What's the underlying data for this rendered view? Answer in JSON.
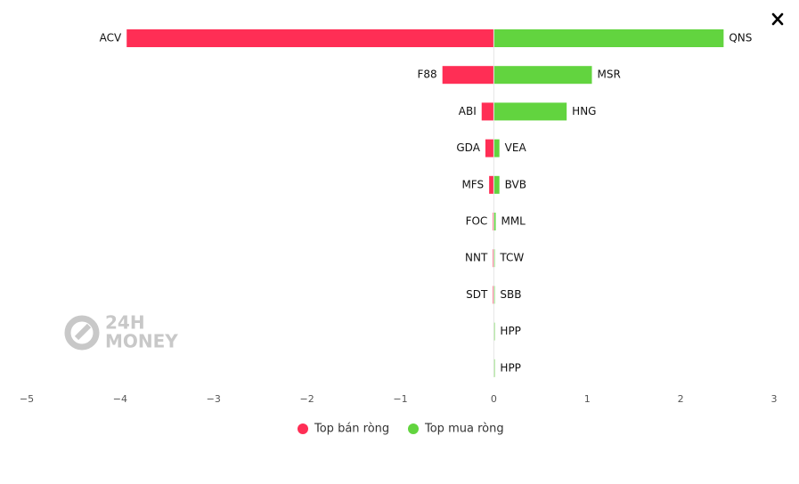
{
  "chart_data": {
    "type": "diverging-bar",
    "series": [
      {
        "name": "Top bán ròng",
        "color": "#ff2e55",
        "labels": [
          "ACV",
          "F88",
          "ABI",
          "GDA",
          "MFS",
          "FOC",
          "NNT",
          "SDT",
          null,
          null
        ],
        "values": [
          -3.93,
          -0.55,
          -0.13,
          -0.09,
          -0.05,
          -0.01,
          -0.01,
          -0.01,
          0,
          0
        ]
      },
      {
        "name": "Top mua ròng",
        "color": "#62d43f",
        "labels": [
          "QNS",
          "MSR",
          "HNG",
          "VEA",
          "BVB",
          "MML",
          "TCW",
          "SBB",
          "HPP",
          "HPP"
        ],
        "values": [
          2.46,
          1.05,
          0.78,
          0.06,
          0.06,
          0.02,
          0.01,
          0.01,
          0.01,
          0.01
        ]
      }
    ],
    "xlim": [
      -5,
      3
    ],
    "xticks": [
      {
        "value": -5,
        "label": "−5"
      },
      {
        "value": -4,
        "label": "−4"
      },
      {
        "value": -3,
        "label": "−3"
      },
      {
        "value": -2,
        "label": "−2"
      },
      {
        "value": -1,
        "label": "−1"
      },
      0,
      1,
      2,
      3
    ],
    "watermark": [
      "24H",
      "MONEY"
    ]
  }
}
